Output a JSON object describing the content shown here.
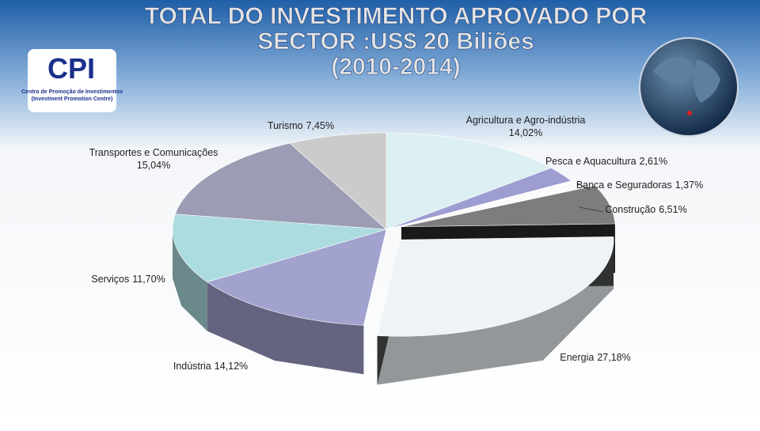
{
  "chart_data": {
    "type": "pie",
    "title": [
      "TOTAL DO INVESTIMENTO APROVADO POR",
      "SECTOR :US$ 20 Biliões",
      "(2010-2014)"
    ],
    "categories": [
      "Agricultura e Agro-indústria",
      "Pesca e Aquacultura",
      "Banca e Seguradoras",
      "Construção",
      "Energia",
      "Indústria",
      "Serviços",
      "Transportes e Comunicações",
      "Turismo"
    ],
    "values": [
      14.02,
      2.61,
      1.37,
      6.51,
      27.18,
      14.12,
      11.7,
      15.04,
      7.45
    ],
    "value_labels": [
      "14,02%",
      "2,61%",
      "1,37%",
      "6,51%",
      "27,18%",
      "14,12%",
      "11,70%",
      "15,04%",
      "7,45%"
    ],
    "colors": [
      "#dceff3",
      "#9d9dd2",
      "#fbfbfb",
      "#7d7d7d",
      "#eef3f7",
      "#a2a2cf",
      "#acdcdf",
      "#9c9cb4",
      "#cbcbcb"
    ]
  },
  "logo": {
    "mark": "CPI",
    "line1": "Centro de Promoção de Investimentos",
    "line2": "(Investment Promotion Centre)"
  }
}
